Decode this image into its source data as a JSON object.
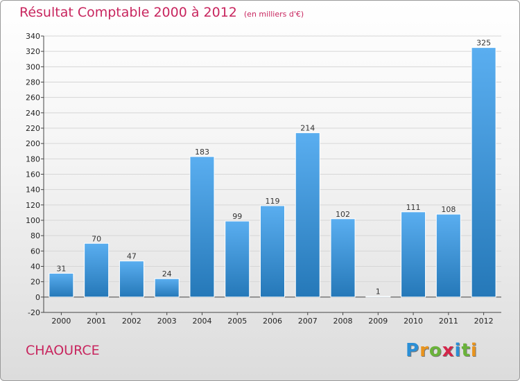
{
  "title": "Résultat Comptable 2000 à 2012",
  "subtitle": "(en milliers d'€)",
  "place": "CHAOURCE",
  "logo": {
    "letters": [
      "P",
      "r",
      "o",
      "x",
      "i",
      "t",
      "i"
    ],
    "colors": [
      "#2b8fd6",
      "#e9941d",
      "#6ab33a",
      "#d4264a",
      "#2b8fd6",
      "#6ab33a",
      "#e9941d"
    ]
  },
  "colors": {
    "bar_top": "#5aaef0",
    "bar_bottom": "#2578b8",
    "title": "#c8255e"
  },
  "chart_data": {
    "type": "bar",
    "categories": [
      "2000",
      "2001",
      "2002",
      "2003",
      "2004",
      "2005",
      "2006",
      "2007",
      "2008",
      "2009",
      "2010",
      "2011",
      "2012"
    ],
    "values": [
      31,
      70,
      47,
      24,
      183,
      99,
      119,
      214,
      102,
      1,
      111,
      108,
      325
    ],
    "data_labels": [
      "31",
      "70",
      "47",
      "24",
      "183",
      "99",
      "119",
      "214",
      "102",
      "1",
      "111",
      "108",
      "325"
    ],
    "ylim": [
      -20,
      340
    ],
    "yticks": [
      "-20",
      "0",
      "20",
      "40",
      "60",
      "80",
      "100",
      "120",
      "140",
      "160",
      "180",
      "200",
      "220",
      "240",
      "260",
      "280",
      "300",
      "320",
      "340"
    ],
    "grid": true,
    "title": "Résultat Comptable 2000 à 2012",
    "xlabel": "",
    "ylabel": ""
  }
}
